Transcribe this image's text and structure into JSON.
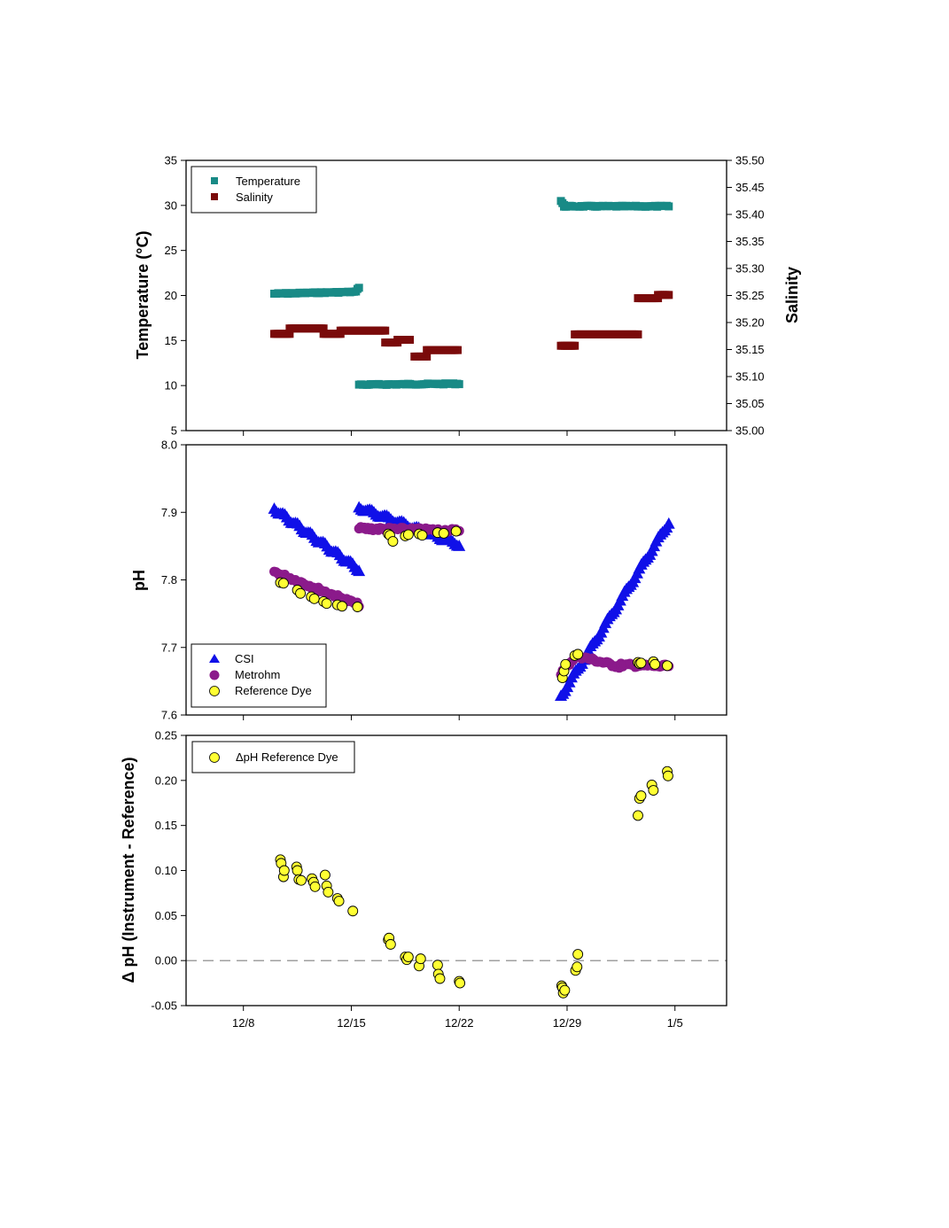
{
  "x_axis": {
    "tick_labels": [
      "12/8",
      "12/15",
      "12/22",
      "12/29",
      "1/5"
    ],
    "tick_days": [
      0,
      7,
      14,
      21,
      28
    ]
  },
  "colors": {
    "temperature": "#188a86",
    "salinity": "#7a0a0a",
    "csi": "#1010e8",
    "metrohm": "#8b1a8b",
    "reference_dye": "#ffff33",
    "zero_line": "#808080"
  },
  "chart_data": [
    {
      "type": "scatter",
      "panel": "top",
      "ylabel": "Temperature (°C)",
      "y2label": "Salinity",
      "ylim": [
        5,
        35
      ],
      "y_ticks": [
        "5",
        "10",
        "15",
        "20",
        "25",
        "30",
        "35"
      ],
      "y2lim": [
        35.0,
        35.5
      ],
      "y2_ticks": [
        "35.00",
        "35.05",
        "35.10",
        "35.15",
        "35.20",
        "35.25",
        "35.30",
        "35.35",
        "35.40",
        "35.45",
        "35.50"
      ],
      "legend": {
        "position": "top-left",
        "entries": [
          "Temperature",
          "Salinity"
        ]
      },
      "series": [
        {
          "name": "Temperature",
          "marker": "square",
          "axis": "left",
          "segments": [
            {
              "x": [
                2.0,
                7.3
              ],
              "y": [
                20.2,
                20.4
              ]
            },
            {
              "x": [
                7.3,
                7.5
              ],
              "y": [
                20.5,
                20.9
              ]
            },
            {
              "x": [
                7.5,
                14.0
              ],
              "y": [
                10.1,
                10.2
              ]
            },
            {
              "x": [
                20.6,
                20.8
              ],
              "y": [
                30.5,
                30.0
              ]
            },
            {
              "x": [
                20.8,
                27.6
              ],
              "y": [
                29.9,
                29.9
              ]
            }
          ]
        },
        {
          "name": "Salinity",
          "marker": "square",
          "axis": "right",
          "segments": [
            {
              "x": [
                2.0,
                3.0
              ],
              "y": [
                35.179,
                35.179
              ]
            },
            {
              "x": [
                3.0,
                5.2
              ],
              "y": [
                35.189,
                35.189
              ]
            },
            {
              "x": [
                5.2,
                6.3
              ],
              "y": [
                35.179,
                35.179
              ]
            },
            {
              "x": [
                6.3,
                9.2
              ],
              "y": [
                35.185,
                35.185
              ]
            },
            {
              "x": [
                9.2,
                10.0
              ],
              "y": [
                35.163,
                35.163
              ]
            },
            {
              "x": [
                10.0,
                10.8
              ],
              "y": [
                35.168,
                35.168
              ]
            },
            {
              "x": [
                11.1,
                11.9
              ],
              "y": [
                35.137,
                35.137
              ]
            },
            {
              "x": [
                11.9,
                13.9
              ],
              "y": [
                35.149,
                35.149
              ]
            },
            {
              "x": [
                20.6,
                21.5
              ],
              "y": [
                35.157,
                35.157
              ]
            },
            {
              "x": [
                21.5,
                25.6
              ],
              "y": [
                35.178,
                35.178
              ]
            },
            {
              "x": [
                25.6,
                26.9
              ],
              "y": [
                35.245,
                35.245
              ]
            },
            {
              "x": [
                26.9,
                27.6
              ],
              "y": [
                35.251,
                35.251
              ]
            }
          ]
        }
      ]
    },
    {
      "type": "scatter",
      "panel": "middle",
      "ylabel": "pH",
      "ylim": [
        7.6,
        8.0
      ],
      "y_ticks": [
        "7.6",
        "7.7",
        "7.8",
        "7.9",
        "8.0"
      ],
      "legend": {
        "position": "bottom-left",
        "entries": [
          "CSI",
          "Metrohm",
          "Reference Dye"
        ]
      },
      "series": [
        {
          "name": "CSI",
          "marker": "triangle",
          "segments": [
            {
              "x": [
                2.0,
                7.5
              ],
              "y": [
                7.905,
                7.815
              ]
            },
            {
              "x": [
                7.5,
                14.0
              ],
              "y": [
                7.907,
                7.852
              ]
            },
            {
              "x": [
                20.6,
                27.6
              ],
              "y": [
                7.628,
                7.885
              ]
            }
          ]
        },
        {
          "name": "Metrohm",
          "marker": "circle",
          "segments": [
            {
              "x": [
                2.0,
                7.5
              ],
              "y": [
                7.812,
                7.763
              ]
            },
            {
              "x": [
                7.5,
                14.0
              ],
              "y": [
                7.876,
                7.873
              ]
            },
            {
              "x": [
                20.6,
                21.6
              ],
              "y": [
                7.662,
                7.688
              ]
            },
            {
              "x": [
                21.6,
                24.5
              ],
              "y": [
                7.688,
                7.671
              ]
            },
            {
              "x": [
                24.5,
                27.6
              ],
              "y": [
                7.674,
                7.672
              ]
            }
          ]
        },
        {
          "name": "Reference Dye",
          "marker": "circle",
          "x": [
            2.4,
            2.6,
            3.5,
            3.7,
            4.4,
            4.6,
            5.2,
            5.4,
            6.1,
            6.4,
            7.4,
            9.4,
            9.5,
            9.7,
            10.5,
            10.7,
            11.4,
            11.6,
            12.6,
            13.0,
            13.8,
            20.7,
            20.8,
            20.9,
            21.5,
            21.7,
            25.6,
            25.7,
            25.8,
            26.6,
            26.7,
            27.5
          ],
          "y": [
            7.796,
            7.795,
            7.785,
            7.78,
            7.775,
            7.772,
            7.768,
            7.765,
            7.763,
            7.761,
            7.76,
            7.868,
            7.866,
            7.857,
            7.865,
            7.867,
            7.868,
            7.866,
            7.87,
            7.869,
            7.872,
            7.655,
            7.665,
            7.675,
            7.688,
            7.69,
            7.678,
            7.676,
            7.677,
            7.679,
            7.675,
            7.673
          ]
        }
      ]
    },
    {
      "type": "scatter",
      "panel": "bottom",
      "ylabel": "Δ pH (Instrument - Reference)",
      "ylim": [
        -0.05,
        0.25
      ],
      "y_ticks": [
        "-0.05",
        "0.00",
        "0.05",
        "0.10",
        "0.15",
        "0.20",
        "0.25"
      ],
      "reference_line": 0,
      "legend": {
        "position": "top-left",
        "entries": [
          "ΔpH Reference Dye"
        ]
      },
      "series": [
        {
          "name": "ΔpH Reference Dye",
          "marker": "circle",
          "x": [
            2.4,
            2.45,
            2.6,
            2.65,
            3.45,
            3.5,
            3.6,
            3.75,
            4.45,
            4.55,
            4.65,
            5.3,
            5.4,
            5.5,
            6.1,
            6.2,
            7.1,
            9.4,
            9.45,
            9.55,
            10.5,
            10.6,
            10.7,
            11.4,
            11.5,
            12.6,
            12.65,
            12.75,
            14.0,
            14.05,
            20.65,
            20.7,
            20.75,
            20.85,
            21.55,
            21.65,
            21.7,
            25.6,
            25.7,
            25.8,
            26.5,
            26.6,
            27.5,
            27.55
          ],
          "y": [
            0.112,
            0.108,
            0.093,
            0.1,
            0.104,
            0.1,
            0.09,
            0.089,
            0.091,
            0.087,
            0.082,
            0.095,
            0.083,
            0.076,
            0.069,
            0.066,
            0.055,
            0.023,
            0.025,
            0.018,
            0.004,
            0.001,
            0.004,
            -0.006,
            0.002,
            -0.005,
            -0.015,
            -0.02,
            -0.023,
            -0.025,
            -0.028,
            -0.03,
            -0.036,
            -0.033,
            -0.011,
            -0.007,
            0.007,
            0.161,
            0.18,
            0.183,
            0.195,
            0.189,
            0.21,
            0.205
          ]
        }
      ]
    }
  ]
}
